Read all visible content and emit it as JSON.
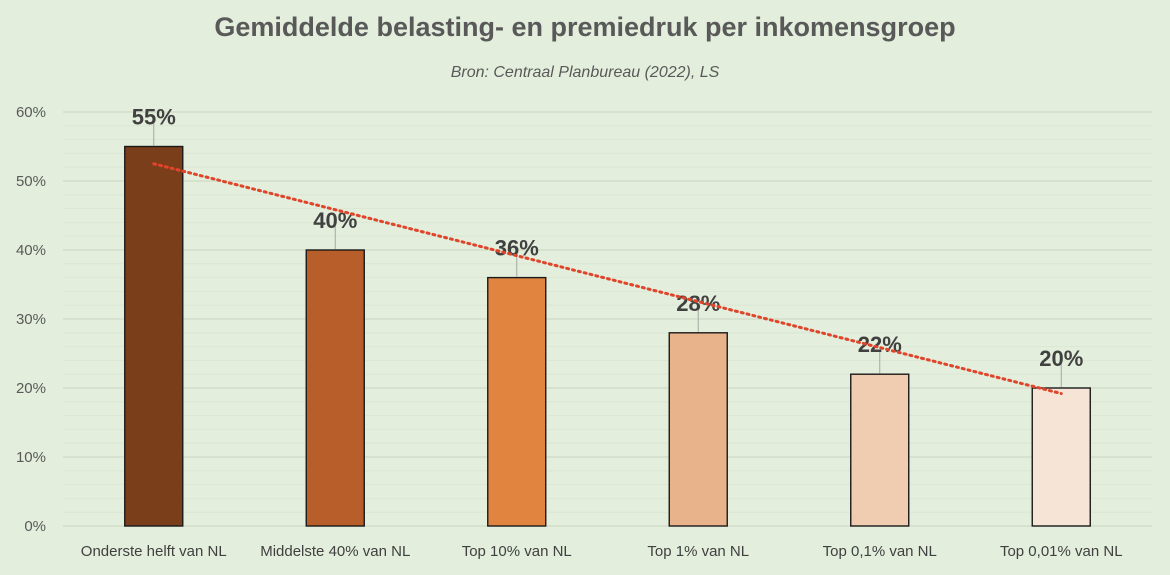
{
  "chart_data": {
    "type": "bar",
    "title": "Gemiddelde belasting- en premiedruk per inkomensgroep",
    "subtitle": "Bron: Centraal Planbureau (2022), LS",
    "categories": [
      "Onderste helft van NL",
      "Middelste 40% van NL",
      "Top 10% van NL",
      "Top 1% van NL",
      "Top 0,1% van NL",
      "Top 0,01% van NL"
    ],
    "values": [
      55,
      40,
      36,
      28,
      22,
      20
    ],
    "data_labels": [
      "55%",
      "40%",
      "36%",
      "28%",
      "22%",
      "20%"
    ],
    "bar_colors": [
      "#7b3e1b",
      "#b85e2b",
      "#e0843f",
      "#e8b28b",
      "#f0ccb0",
      "#f6e4d6"
    ],
    "ylim": [
      0,
      60
    ],
    "yticks": [
      0,
      10,
      20,
      30,
      40,
      50,
      60
    ],
    "ytick_labels": [
      "0%",
      "10%",
      "20%",
      "30%",
      "40%",
      "50%",
      "60%"
    ],
    "grid": true,
    "legend": "none",
    "trendline": {
      "style": "dotted",
      "color": "#e0452b",
      "start": 52.5,
      "end": 19.2
    },
    "background_color": "#e3eedc",
    "grid_color": "#cfdcc6"
  }
}
